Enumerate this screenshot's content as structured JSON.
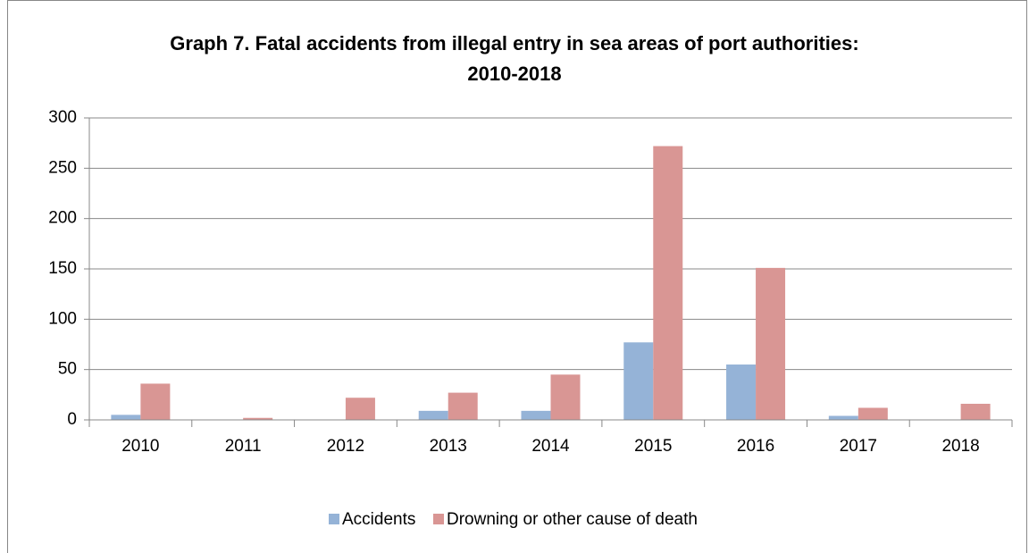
{
  "chart_data": {
    "type": "bar",
    "title": [
      "Graph 7. Fatal accidents from illegal entry in sea areas of port authorities:",
      "2010-2018"
    ],
    "categories": [
      "2010",
      "2011",
      "2012",
      "2013",
      "2014",
      "2015",
      "2016",
      "2017",
      "2018"
    ],
    "series": [
      {
        "name": "Accidents",
        "color": "#95b3d7",
        "values": [
          5,
          0,
          0,
          9,
          9,
          77,
          55,
          4,
          0
        ]
      },
      {
        "name": "Drowning or other cause of death",
        "color": "#d99694",
        "values": [
          36,
          2,
          22,
          27,
          45,
          272,
          151,
          12,
          16
        ]
      }
    ],
    "ylim": [
      0,
      300
    ],
    "yticks": [
      0,
      50,
      100,
      150,
      200,
      250,
      300
    ],
    "grid": true,
    "legend": "bottom"
  }
}
